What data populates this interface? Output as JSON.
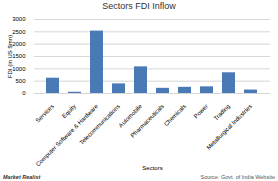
{
  "chart_data": {
    "type": "bar",
    "title": "Sectors FDI Inflow",
    "xlabel": "Sectors",
    "ylabel": "FDI (in US $mn)",
    "categories": [
      "Services",
      "Equity",
      "Computer Software & Hardware",
      "Telecommunications",
      "Automobile",
      "Pharmaceuticals",
      "Chemicals",
      "Power",
      "Trading",
      "Metallurgical Industries"
    ],
    "values": [
      620,
      50,
      2530,
      390,
      1080,
      210,
      250,
      270,
      840,
      140
    ],
    "color": "#4a7ab5",
    "ylim": [
      0,
      3000
    ],
    "yticks": [
      0,
      500,
      1000,
      1500,
      2000,
      2500,
      3000
    ],
    "grid": true,
    "annotations": [
      "Market Realist",
      "Source: Govt. of India Website"
    ]
  }
}
